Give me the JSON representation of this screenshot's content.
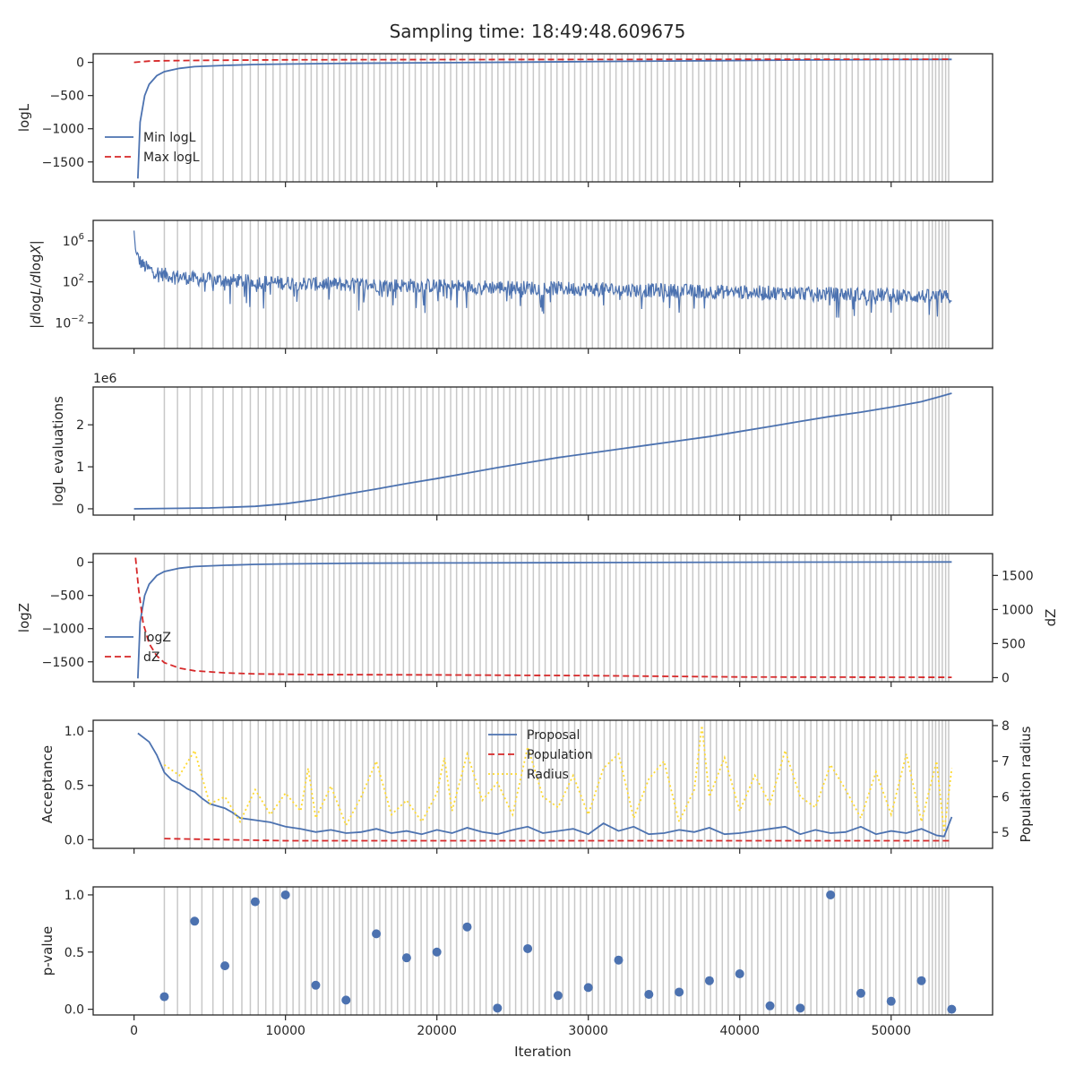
{
  "figure": {
    "title": "Sampling time: 18:49:48.609675",
    "xlabel": "Iteration"
  },
  "colors": {
    "blue": "#4c72b0",
    "red": "#d62728",
    "yellow": "#ffd92f",
    "vline": "#c8c8c8",
    "axis": "#262626"
  },
  "chart_data": [
    {
      "id": "logl",
      "type": "line",
      "ylabel": "logL",
      "xlim": [
        -2700,
        56700
      ],
      "ylim": [
        -1800,
        130
      ],
      "yticks": [
        0,
        -500,
        -1000,
        -1500
      ],
      "ytick_labels": [
        "0",
        "−500",
        "−1000",
        "−1500"
      ],
      "legend": {
        "placement": "lower-left",
        "entries": [
          "Min logL",
          "Max logL"
        ]
      },
      "series": [
        {
          "name": "Min logL",
          "style": "solid",
          "color": "#4c72b0",
          "x": [
            250,
            400,
            700,
            1000,
            1500,
            2000,
            3000,
            4000,
            6000,
            8000,
            10000,
            14000,
            20000,
            26000,
            32000,
            38000,
            44000,
            50000,
            54000
          ],
          "y": [
            -1750,
            -900,
            -500,
            -330,
            -200,
            -140,
            -90,
            -65,
            -45,
            -32,
            -25,
            -15,
            -5,
            5,
            15,
            25,
            35,
            42,
            45
          ]
        },
        {
          "name": "Max logL",
          "style": "dashed",
          "color": "#d62728",
          "x": [
            0,
            500,
            1000,
            2000,
            5000,
            10000,
            20000,
            30000,
            40000,
            50000,
            54000
          ],
          "y": [
            0,
            10,
            20,
            25,
            32,
            38,
            42,
            44,
            46,
            47,
            48
          ]
        }
      ]
    },
    {
      "id": "dlogl",
      "type": "line",
      "ylabel": "|dlogL/dlogX|",
      "yscale": "log",
      "xlim": [
        -2700,
        56700
      ],
      "ylim_log10": [
        -4.5,
        8
      ],
      "yticks_log10": [
        6,
        2,
        -2
      ],
      "ytick_labels": [
        "10^6",
        "10^2",
        "10^-2"
      ],
      "series": [
        {
          "name": "",
          "style": "solid",
          "color": "#4c72b0",
          "x": [
            0,
            100,
            300,
            600,
            1000,
            2000,
            4000,
            8000,
            12000,
            20000,
            30000,
            40000,
            50000,
            54000
          ],
          "y_log10": [
            7.0,
            5.0,
            4.2,
            3.6,
            3.2,
            2.7,
            2.3,
            2.0,
            1.8,
            1.6,
            1.3,
            1.0,
            0.7,
            0.5
          ]
        }
      ]
    },
    {
      "id": "evals",
      "type": "line",
      "ylabel": "logL evaluations",
      "yscale_label": "1e6",
      "xlim": [
        -2700,
        56700
      ],
      "ylim": [
        -0.15,
        2.9
      ],
      "yticks": [
        0,
        1,
        2
      ],
      "ytick_labels": [
        "0",
        "1",
        "2"
      ],
      "series": [
        {
          "name": "",
          "style": "solid",
          "color": "#4c72b0",
          "x": [
            0,
            5000,
            8000,
            10000,
            12000,
            14000,
            16000,
            18000,
            20000,
            22000,
            24000,
            26000,
            28000,
            30000,
            32000,
            34000,
            36000,
            38000,
            40000,
            42000,
            44000,
            46000,
            48000,
            50000,
            52000,
            53000,
            54000
          ],
          "y": [
            0,
            0.02,
            0.06,
            0.12,
            0.22,
            0.35,
            0.47,
            0.6,
            0.72,
            0.85,
            0.98,
            1.1,
            1.22,
            1.32,
            1.42,
            1.52,
            1.62,
            1.72,
            1.84,
            1.96,
            2.08,
            2.2,
            2.3,
            2.42,
            2.55,
            2.65,
            2.75
          ]
        }
      ]
    },
    {
      "id": "logz",
      "type": "line",
      "ylabel": "logZ",
      "ylabel_right": "dZ",
      "xlim": [
        -2700,
        56700
      ],
      "ylim": [
        -1800,
        130
      ],
      "yticks": [
        0,
        -500,
        -1000,
        -1500
      ],
      "ytick_labels": [
        "0",
        "−500",
        "−1000",
        "−1500"
      ],
      "ylim_right": [
        -60,
        1820
      ],
      "yticks_right": [
        0,
        500,
        1000,
        1500
      ],
      "ytick_labels_right": [
        "0",
        "500",
        "1000",
        "1500"
      ],
      "legend": {
        "placement": "lower-left",
        "entries": [
          "logZ",
          "dZ"
        ]
      },
      "series": [
        {
          "name": "logZ",
          "axis": "left",
          "style": "solid",
          "color": "#4c72b0",
          "x": [
            250,
            400,
            700,
            1000,
            1500,
            2000,
            3000,
            4000,
            6000,
            8000,
            10000,
            15000,
            20000,
            30000,
            40000,
            54000
          ],
          "y": [
            -1750,
            -900,
            -500,
            -330,
            -200,
            -140,
            -90,
            -65,
            -45,
            -32,
            -25,
            -15,
            -10,
            -5,
            0,
            5
          ]
        },
        {
          "name": "dZ",
          "axis": "right",
          "style": "dashed",
          "color": "#d62728",
          "x": [
            100,
            300,
            600,
            1000,
            1500,
            2000,
            3000,
            4000,
            6000,
            8000,
            12000,
            20000,
            30000,
            40000,
            54000
          ],
          "y": [
            1760,
            1300,
            800,
            500,
            320,
            220,
            140,
            100,
            70,
            55,
            45,
            40,
            30,
            10,
            5
          ]
        }
      ]
    },
    {
      "id": "acceptance",
      "type": "line",
      "ylabel": "Acceptance",
      "ylabel_right": "Population radius",
      "xlim": [
        -2700,
        56700
      ],
      "ylim": [
        -0.08,
        1.1
      ],
      "yticks": [
        0,
        0.5,
        1
      ],
      "ytick_labels": [
        "0.0",
        "0.5",
        "1.0"
      ],
      "ylim_right": [
        4.55,
        8.15
      ],
      "yticks_right": [
        5,
        6,
        7,
        8
      ],
      "ytick_labels_right": [
        "5",
        "6",
        "7",
        "8"
      ],
      "legend": {
        "placement": "upper-center",
        "entries": [
          "Proposal",
          "Population",
          "Radius"
        ]
      },
      "series": [
        {
          "name": "Proposal",
          "axis": "left",
          "style": "solid",
          "color": "#4c72b0",
          "x": [
            250,
            1000,
            1500,
            2000,
            2500,
            3000,
            3500,
            4000,
            4500,
            5000,
            5500,
            6000,
            6500,
            7000,
            8000,
            9000,
            10000,
            11000,
            12000,
            13000,
            14000,
            15000,
            16000,
            17000,
            18000,
            19000,
            20000,
            21000,
            22000,
            23000,
            24000,
            25000,
            26000,
            27000,
            28000,
            29000,
            30000,
            31000,
            32000,
            33000,
            34000,
            35000,
            36000,
            37000,
            38000,
            39000,
            40000,
            41000,
            42000,
            43000,
            44000,
            45000,
            46000,
            47000,
            48000,
            49000,
            50000,
            51000,
            52000,
            53000,
            53500,
            54000
          ],
          "y": [
            0.98,
            0.9,
            0.78,
            0.62,
            0.55,
            0.52,
            0.47,
            0.44,
            0.38,
            0.33,
            0.31,
            0.29,
            0.25,
            0.2,
            0.18,
            0.16,
            0.12,
            0.1,
            0.07,
            0.09,
            0.06,
            0.07,
            0.1,
            0.06,
            0.08,
            0.05,
            0.09,
            0.06,
            0.11,
            0.07,
            0.05,
            0.09,
            0.12,
            0.06,
            0.08,
            0.1,
            0.05,
            0.15,
            0.08,
            0.12,
            0.05,
            0.06,
            0.09,
            0.07,
            0.11,
            0.05,
            0.06,
            0.08,
            0.1,
            0.12,
            0.05,
            0.09,
            0.06,
            0.07,
            0.12,
            0.05,
            0.08,
            0.06,
            0.1,
            0.04,
            0.03,
            0.21
          ]
        },
        {
          "name": "Population",
          "axis": "left",
          "style": "dashed",
          "color": "#d62728",
          "x": [
            2000,
            6000,
            10000,
            20000,
            30000,
            40000,
            50000,
            54000
          ],
          "y": [
            0.01,
            0.0,
            -0.01,
            -0.01,
            -0.01,
            -0.01,
            -0.01,
            -0.01
          ]
        },
        {
          "name": "Radius",
          "axis": "right",
          "style": "dotted",
          "color": "#ffd92f",
          "x": [
            2000,
            3000,
            4000,
            5000,
            6000,
            7000,
            8000,
            9000,
            10000,
            11000,
            11500,
            12000,
            13000,
            14000,
            15000,
            16000,
            17000,
            18000,
            19000,
            20000,
            20500,
            21000,
            22000,
            23000,
            24000,
            25000,
            26000,
            27000,
            28000,
            29000,
            30000,
            31000,
            32000,
            33000,
            34000,
            35000,
            36000,
            37000,
            37500,
            38000,
            39000,
            40000,
            41000,
            42000,
            43000,
            44000,
            45000,
            46000,
            47000,
            48000,
            49000,
            50000,
            51000,
            52000,
            53000,
            53500,
            54000
          ],
          "y": [
            6.9,
            6.6,
            7.3,
            5.8,
            6.0,
            5.3,
            6.2,
            5.5,
            6.1,
            5.6,
            6.8,
            5.4,
            6.3,
            5.2,
            6.0,
            7.0,
            5.5,
            5.9,
            5.3,
            6.1,
            7.1,
            5.6,
            7.2,
            5.9,
            6.4,
            5.5,
            7.4,
            6.0,
            5.7,
            6.6,
            5.5,
            6.8,
            7.2,
            5.4,
            6.5,
            7.0,
            5.3,
            6.2,
            8.0,
            6.0,
            7.1,
            5.6,
            6.6,
            5.8,
            7.3,
            6.0,
            5.7,
            6.9,
            6.2,
            5.4,
            6.7,
            5.5,
            7.2,
            5.3,
            7.0,
            5.0,
            6.8
          ]
        }
      ]
    },
    {
      "id": "pvalue",
      "type": "scatter",
      "ylabel": "p-value",
      "xlim": [
        -2700,
        56700
      ],
      "ylim": [
        -0.05,
        1.07
      ],
      "yticks": [
        0,
        0.5,
        1
      ],
      "ytick_labels": [
        "0.0",
        "0.5",
        "1.0"
      ],
      "xticks": [
        0,
        10000,
        20000,
        30000,
        40000,
        50000
      ],
      "xtick_labels": [
        "0",
        "10000",
        "20000",
        "30000",
        "40000",
        "50000"
      ],
      "series": [
        {
          "name": "",
          "color": "#4c72b0",
          "x": [
            2000,
            4000,
            6000,
            8000,
            10000,
            12000,
            14000,
            16000,
            18000,
            20000,
            22000,
            24000,
            26000,
            28000,
            30000,
            32000,
            34000,
            36000,
            38000,
            40000,
            42000,
            44000,
            46000,
            48000,
            50000,
            52000,
            54000
          ],
          "y": [
            0.11,
            0.77,
            0.38,
            0.94,
            1.0,
            0.21,
            0.08,
            0.66,
            0.45,
            0.5,
            0.72,
            0.01,
            0.53,
            0.12,
            0.19,
            0.43,
            0.13,
            0.15,
            0.25,
            0.31,
            0.03,
            0.01,
            1.0,
            0.14,
            0.07,
            0.25,
            0.0
          ]
        }
      ]
    }
  ],
  "restart_lines_x": [
    2000,
    2870,
    3700,
    4480,
    5210,
    5890,
    6530,
    7120,
    7680,
    8200,
    8700,
    9180,
    9640,
    10080,
    10500,
    10910,
    11310,
    11700,
    12080,
    12450,
    12820,
    13200,
    13570,
    13950,
    14330,
    14710,
    15090,
    15470,
    15850,
    16230,
    16620,
    17010,
    17400,
    17790,
    18180,
    18570,
    18960,
    19350,
    19740,
    20130,
    20520,
    20910,
    21300,
    21690,
    22080,
    22470,
    22860,
    23250,
    23640,
    24030,
    24420,
    24810,
    25200,
    25590,
    25980,
    26370,
    26760,
    27150,
    27540,
    27930,
    28320,
    28710,
    29100,
    29490,
    29880,
    30270,
    30660,
    31050,
    31440,
    31830,
    32220,
    32610,
    33000,
    33390,
    33780,
    34170,
    34560,
    34950,
    35340,
    35730,
    36120,
    36510,
    36900,
    37290,
    37680,
    38070,
    38460,
    38850,
    39240,
    39630,
    40020,
    40410,
    40800,
    41190,
    41580,
    41970,
    42360,
    42750,
    43140,
    43530,
    43920,
    44310,
    44700,
    45090,
    45480,
    45870,
    46260,
    46650,
    47040,
    47430,
    47820,
    48210,
    48600,
    48990,
    49380,
    49770,
    50160,
    50550,
    50940,
    51330,
    51720,
    52110,
    52500,
    52720,
    52940,
    53160,
    53380,
    53600,
    53800
  ]
}
